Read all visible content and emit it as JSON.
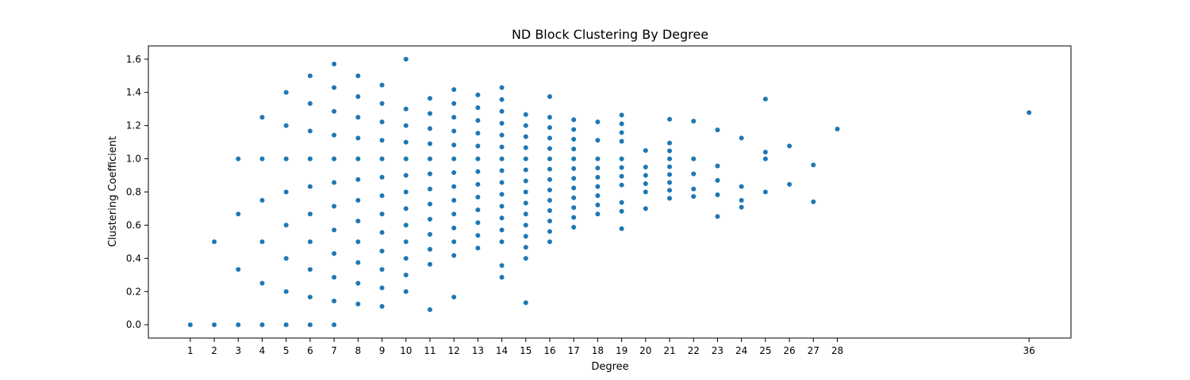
{
  "chart_data": {
    "type": "scatter",
    "title": "ND Block Clustering By Degree",
    "xlabel": "Degree",
    "ylabel": "Clustering Coefficient",
    "xlim": [
      -0.75,
      37.75
    ],
    "ylim": [
      -0.08,
      1.68
    ],
    "xticks": [
      1,
      2,
      3,
      4,
      5,
      6,
      7,
      8,
      9,
      10,
      11,
      12,
      13,
      14,
      15,
      16,
      17,
      18,
      19,
      20,
      21,
      22,
      23,
      24,
      25,
      26,
      27,
      28,
      36
    ],
    "yticks": [
      0.0,
      0.2,
      0.4,
      0.6,
      0.8,
      1.0,
      1.2,
      1.4,
      1.6
    ],
    "ytick_labels": [
      "0.0",
      "0.2",
      "0.4",
      "0.6",
      "0.8",
      "1.0",
      "1.2",
      "1.4",
      "1.6"
    ],
    "grid": false,
    "marker_color": "#1f77b4",
    "points": {
      "1": [
        0
      ],
      "2": [
        0,
        0.5
      ],
      "3": [
        0,
        0.333,
        0.667,
        1.0
      ],
      "4": [
        0,
        0.25,
        0.5,
        0.75,
        1.0,
        1.25
      ],
      "5": [
        0,
        0.2,
        0.4,
        0.6,
        0.8,
        1.0,
        1.2,
        1.4
      ],
      "6": [
        0,
        0.167,
        0.333,
        0.5,
        0.667,
        0.833,
        1.0,
        1.167,
        1.333,
        1.5
      ],
      "7": [
        0,
        0.143,
        0.286,
        0.429,
        0.571,
        0.714,
        0.857,
        1.0,
        1.143,
        1.286,
        1.429,
        1.571
      ],
      "8": [
        0.125,
        0.25,
        0.375,
        0.5,
        0.625,
        0.75,
        0.875,
        1.0,
        1.125,
        1.25,
        1.375,
        1.5
      ],
      "9": [
        0.111,
        0.222,
        0.333,
        0.444,
        0.556,
        0.667,
        0.778,
        0.889,
        1.0,
        1.111,
        1.222,
        1.333,
        1.444
      ],
      "10": [
        0.2,
        0.3,
        0.4,
        0.5,
        0.6,
        0.7,
        0.8,
        0.9,
        1.0,
        1.1,
        1.2,
        1.3,
        1.6
      ],
      "11": [
        0.091,
        0.364,
        0.455,
        0.545,
        0.636,
        0.727,
        0.818,
        0.909,
        1.0,
        1.091,
        1.182,
        1.273,
        1.364
      ],
      "12": [
        0.167,
        0.417,
        0.5,
        0.583,
        0.667,
        0.75,
        0.833,
        0.917,
        1.0,
        1.083,
        1.167,
        1.25,
        1.333,
        1.417
      ],
      "13": [
        0.462,
        0.538,
        0.615,
        0.692,
        0.769,
        0.846,
        0.923,
        1.0,
        1.077,
        1.154,
        1.231,
        1.308,
        1.385
      ],
      "14": [
        0.286,
        0.357,
        0.5,
        0.571,
        0.643,
        0.714,
        0.786,
        0.857,
        0.929,
        1.0,
        1.071,
        1.143,
        1.214,
        1.286,
        1.357,
        1.429
      ],
      "15": [
        0.133,
        0.4,
        0.467,
        0.533,
        0.6,
        0.667,
        0.733,
        0.8,
        0.867,
        0.933,
        1.0,
        1.067,
        1.133,
        1.2,
        1.267
      ],
      "16": [
        0.5,
        0.562,
        0.625,
        0.688,
        0.75,
        0.812,
        0.875,
        0.938,
        1.0,
        1.062,
        1.125,
        1.188,
        1.25,
        1.375
      ],
      "17": [
        0.588,
        0.647,
        0.706,
        0.765,
        0.824,
        0.882,
        0.941,
        1.0,
        1.059,
        1.118,
        1.176,
        1.235
      ],
      "18": [
        0.667,
        0.722,
        0.778,
        0.833,
        0.889,
        0.944,
        1.0,
        1.111,
        1.222
      ],
      "19": [
        0.579,
        0.684,
        0.737,
        0.842,
        0.895,
        0.947,
        1.0,
        1.105,
        1.158,
        1.211,
        1.263
      ],
      "20": [
        0.7,
        0.8,
        0.85,
        0.9,
        0.95,
        1.05
      ],
      "21": [
        0.762,
        0.81,
        0.857,
        0.905,
        0.952,
        1.0,
        1.048,
        1.095,
        1.238
      ],
      "22": [
        0.773,
        0.818,
        0.909,
        1.0,
        1.227
      ],
      "23": [
        0.652,
        0.783,
        0.87,
        0.957,
        1.174
      ],
      "24": [
        0.708,
        0.75,
        0.833,
        1.125
      ],
      "25": [
        0.8,
        1.0,
        1.04,
        1.36
      ],
      "26": [
        0.846,
        1.077
      ],
      "27": [
        0.741,
        0.963
      ],
      "28": [
        1.179
      ],
      "36": [
        1.278
      ]
    }
  }
}
